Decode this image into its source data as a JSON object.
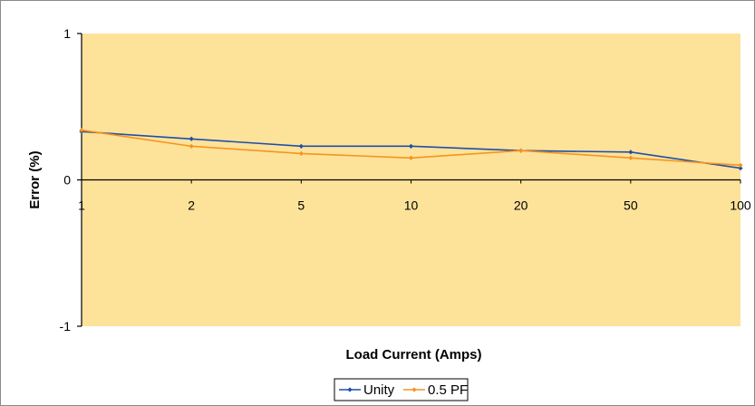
{
  "chart_data": {
    "type": "line",
    "categories": [
      "1",
      "2",
      "5",
      "10",
      "20",
      "50",
      "100"
    ],
    "series": [
      {
        "name": "Unity",
        "values": [
          0.33,
          0.28,
          0.23,
          0.23,
          0.2,
          0.19,
          0.08
        ],
        "color": "#1f4fa6"
      },
      {
        "name": "0.5 PF",
        "values": [
          0.34,
          0.23,
          0.18,
          0.15,
          0.2,
          0.15,
          0.1
        ],
        "color": "#f7941d"
      }
    ],
    "xlabel": "Load Current (Amps)",
    "ylabel": "Error (%)",
    "ylim": [
      -1,
      1
    ],
    "yticks": [
      "1",
      "0",
      "-1"
    ],
    "grid": false,
    "legend_position": "bottom",
    "plot_background": "#fde29a"
  }
}
